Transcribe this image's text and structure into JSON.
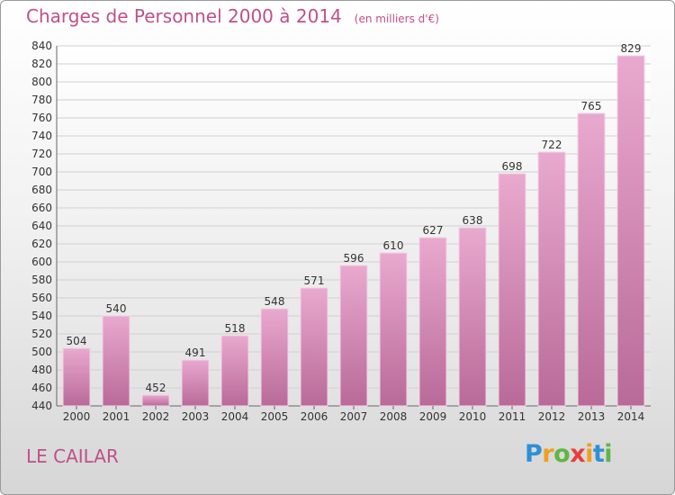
{
  "chart_data": {
    "type": "bar",
    "title": "Charges de Personnel 2000 à 2014",
    "subtitle": "(en milliers d'€)",
    "categories": [
      "2000",
      "2001",
      "2002",
      "2003",
      "2004",
      "2005",
      "2006",
      "2007",
      "2008",
      "2009",
      "2010",
      "2011",
      "2012",
      "2013",
      "2014"
    ],
    "values": [
      504,
      540,
      452,
      491,
      518,
      548,
      571,
      596,
      610,
      627,
      638,
      698,
      722,
      765,
      829
    ],
    "ylim": [
      440,
      840
    ],
    "ytick_step": 20,
    "grid": true,
    "xlabel": "",
    "ylabel": "",
    "bar_color": "#d98cba"
  },
  "location": "LE CAILAR",
  "logo": {
    "text": "Proxiti"
  }
}
